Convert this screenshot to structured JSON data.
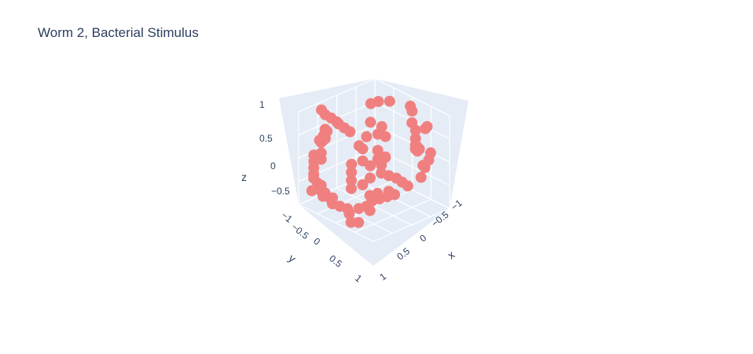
{
  "chart_data": {
    "type": "scatter",
    "title": "Worm 2, Bacterial Stimulus",
    "xlabel": "x",
    "ylabel": "y",
    "zlabel": "z",
    "x_ticks": [
      "−1",
      "−0.5",
      "0",
      "0.5",
      "1"
    ],
    "y_ticks": [
      "−1",
      "−0.5",
      "0",
      "0.5",
      "1"
    ],
    "z_ticks": [
      "−0.5",
      "0",
      "0.5",
      "1"
    ],
    "xlim": [
      -1,
      1
    ],
    "ylim": [
      -1,
      1
    ],
    "zlim": [
      -1,
      1
    ],
    "marker_color": "#F08080",
    "pane_color": "#E5ECF6",
    "grid": true,
    "points": [
      [
        -0.6,
        -0.5,
        0.8
      ],
      [
        -0.5,
        -0.6,
        0.85
      ],
      [
        -0.3,
        -0.7,
        0.9
      ],
      [
        -0.9,
        0.5,
        0.9
      ],
      [
        -0.85,
        0.45,
        0.8
      ],
      [
        0.1,
        -0.85,
        0.9
      ],
      [
        0.2,
        -0.8,
        0.85
      ],
      [
        0.4,
        -0.6,
        0.75
      ],
      [
        0.6,
        -0.5,
        0.7
      ],
      [
        0.7,
        -0.4,
        0.6
      ],
      [
        0.75,
        -0.35,
        0.5
      ],
      [
        0.8,
        -0.3,
        0.45
      ],
      [
        0.7,
        -0.45,
        0.4
      ],
      [
        0.65,
        -0.55,
        0.3
      ],
      [
        0.55,
        -0.6,
        0.2
      ],
      [
        -0.7,
        0.6,
        0.6
      ],
      [
        -0.75,
        0.5,
        0.5
      ],
      [
        -0.8,
        0.55,
        0.4
      ],
      [
        -0.85,
        0.6,
        0.3
      ],
      [
        -0.9,
        0.4,
        0.25
      ],
      [
        -0.6,
        0.8,
        0.2
      ],
      [
        -0.55,
        0.85,
        0.1
      ],
      [
        -0.2,
        -0.1,
        0.7
      ],
      [
        0.0,
        -0.2,
        0.65
      ],
      [
        0.1,
        0.0,
        0.6
      ],
      [
        0.2,
        -0.1,
        0.55
      ],
      [
        -0.1,
        0.1,
        0.5
      ],
      [
        0.3,
        0.2,
        0.4
      ],
      [
        0.0,
        0.3,
        0.35
      ],
      [
        -0.2,
        0.2,
        0.3
      ],
      [
        0.4,
        0.1,
        0.25
      ],
      [
        0.5,
        0.3,
        0.2
      ],
      [
        0.6,
        0.4,
        0.1
      ],
      [
        0.7,
        0.3,
        0.05
      ],
      [
        0.8,
        0.2,
        0.0
      ],
      [
        0.85,
        0.1,
        -0.1
      ],
      [
        0.9,
        0.0,
        -0.2
      ],
      [
        0.75,
        0.35,
        -0.25
      ],
      [
        0.6,
        0.5,
        -0.3
      ],
      [
        0.5,
        0.6,
        -0.35
      ],
      [
        -0.9,
        0.7,
        0.0
      ],
      [
        -0.85,
        0.75,
        -0.1
      ],
      [
        -0.8,
        0.8,
        -0.2
      ],
      [
        -0.75,
        0.85,
        -0.3
      ],
      [
        -0.7,
        0.9,
        -0.35
      ],
      [
        -0.65,
        0.85,
        -0.45
      ],
      [
        -0.6,
        0.8,
        -0.5
      ],
      [
        -0.5,
        0.9,
        -0.55
      ],
      [
        -0.4,
        0.95,
        -0.6
      ],
      [
        -0.3,
        0.85,
        -0.65
      ],
      [
        -0.2,
        0.9,
        -0.7
      ],
      [
        -0.1,
        0.8,
        -0.75
      ],
      [
        0.0,
        0.7,
        -0.8
      ],
      [
        0.1,
        0.75,
        -0.85
      ],
      [
        0.2,
        0.6,
        -0.75
      ],
      [
        0.3,
        0.5,
        -0.7
      ],
      [
        0.35,
        0.4,
        -0.6
      ],
      [
        0.45,
        0.3,
        -0.55
      ],
      [
        0.55,
        0.2,
        -0.5
      ],
      [
        0.65,
        0.1,
        -0.45
      ],
      [
        -0.3,
        0.3,
        -0.1
      ],
      [
        -0.2,
        0.4,
        -0.2
      ],
      [
        -0.1,
        0.5,
        -0.3
      ],
      [
        0.0,
        0.6,
        -0.4
      ],
      [
        0.1,
        0.4,
        -0.35
      ],
      [
        0.2,
        0.3,
        -0.2
      ],
      [
        0.05,
        0.15,
        -0.05
      ],
      [
        -0.05,
        0.25,
        0.05
      ],
      [
        0.15,
        0.05,
        0.1
      ],
      [
        0.25,
        -0.05,
        0.15
      ],
      [
        -0.95,
        0.2,
        0.6
      ],
      [
        -0.9,
        0.1,
        0.5
      ],
      [
        -0.95,
        0.0,
        0.4
      ],
      [
        -0.9,
        -0.1,
        0.3
      ],
      [
        -0.85,
        -0.2,
        0.2
      ],
      [
        0.9,
        -0.6,
        0.3
      ],
      [
        0.95,
        -0.5,
        0.2
      ],
      [
        0.9,
        -0.4,
        0.1
      ],
      [
        0.85,
        -0.5,
        0.0
      ],
      [
        0.95,
        -0.3,
        -0.1
      ],
      [
        -0.4,
        0.95,
        0.6
      ],
      [
        -0.5,
        0.9,
        0.5
      ],
      [
        0.5,
        -0.9,
        0.6
      ],
      [
        0.4,
        -0.95,
        0.5
      ],
      [
        0.3,
        0.9,
        -0.9
      ],
      [
        0.4,
        0.8,
        -0.9
      ],
      [
        -0.6,
        0.7,
        -0.7
      ],
      [
        -0.5,
        0.6,
        -0.8
      ],
      [
        -0.7,
        0.95,
        -0.6
      ],
      [
        0.6,
        0.7,
        -0.6
      ]
    ]
  }
}
